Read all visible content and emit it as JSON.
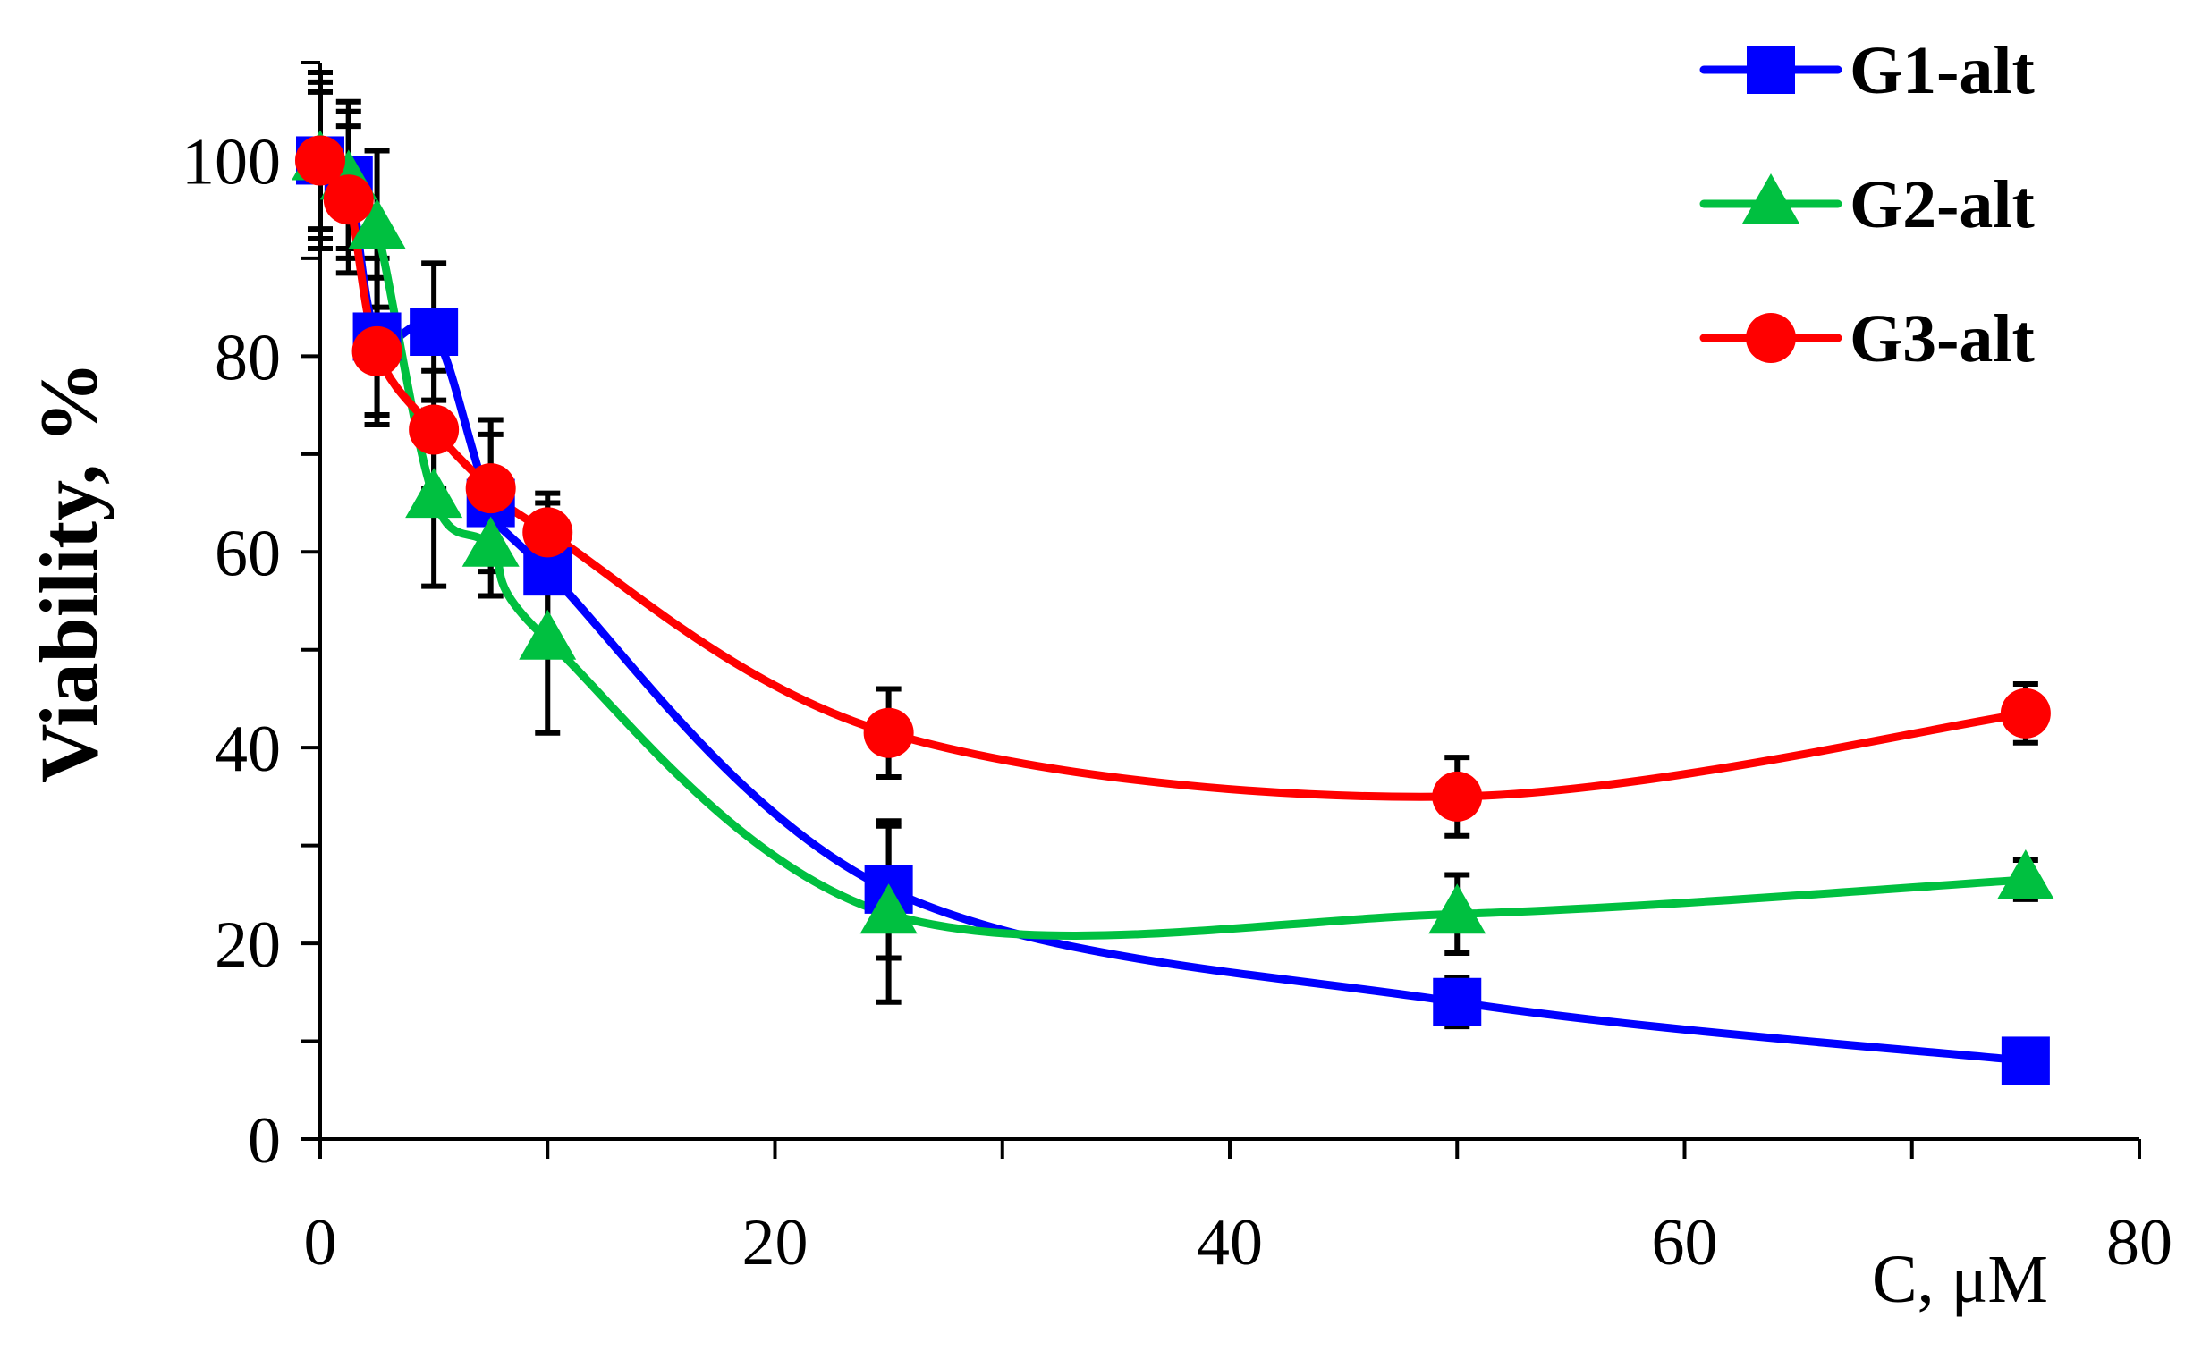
{
  "chart_data": {
    "type": "line",
    "title": "",
    "xlabel": "C, μM",
    "ylabel": "Viability, %",
    "xlim": [
      0,
      80
    ],
    "ylim": [
      0,
      110
    ],
    "x_ticks": [
      0,
      20,
      40,
      60,
      80
    ],
    "y_ticks": [
      0,
      20,
      40,
      60,
      80,
      100
    ],
    "x_minor_step": 10,
    "y_minor_step": 10,
    "grid": false,
    "legend_position": "top-right",
    "series": [
      {
        "name": "G1-alt",
        "color": "#0000ff",
        "marker": "square",
        "x": [
          0,
          1.25,
          2.5,
          5,
          7.5,
          10,
          25,
          50,
          75
        ],
        "y": [
          100,
          98,
          82,
          82.5,
          65,
          58,
          25.5,
          14,
          8
        ],
        "err": [
          8,
          7,
          8,
          7,
          7,
          7,
          7,
          2.5,
          1.5
        ]
      },
      {
        "name": "G2-alt",
        "color": "#00c040",
        "marker": "triangle",
        "x": [
          0,
          1.25,
          2.5,
          5,
          7.5,
          10,
          25,
          50,
          75
        ],
        "y": [
          100,
          98,
          93,
          65.5,
          60.5,
          51,
          23,
          23,
          26.5
        ],
        "err": [
          9,
          8,
          8,
          9,
          5,
          9.5,
          9,
          4,
          2
        ]
      },
      {
        "name": "G3-alt",
        "color": "#ff0000",
        "marker": "circle",
        "x": [
          0,
          1.25,
          2.5,
          5,
          7.5,
          10,
          25,
          50,
          75
        ],
        "y": [
          100,
          96,
          80.5,
          72.5,
          66.5,
          62,
          41.5,
          35,
          43.5
        ],
        "err": [
          7,
          7.5,
          7.5,
          6,
          7,
          4,
          4.5,
          4,
          3
        ]
      }
    ]
  }
}
